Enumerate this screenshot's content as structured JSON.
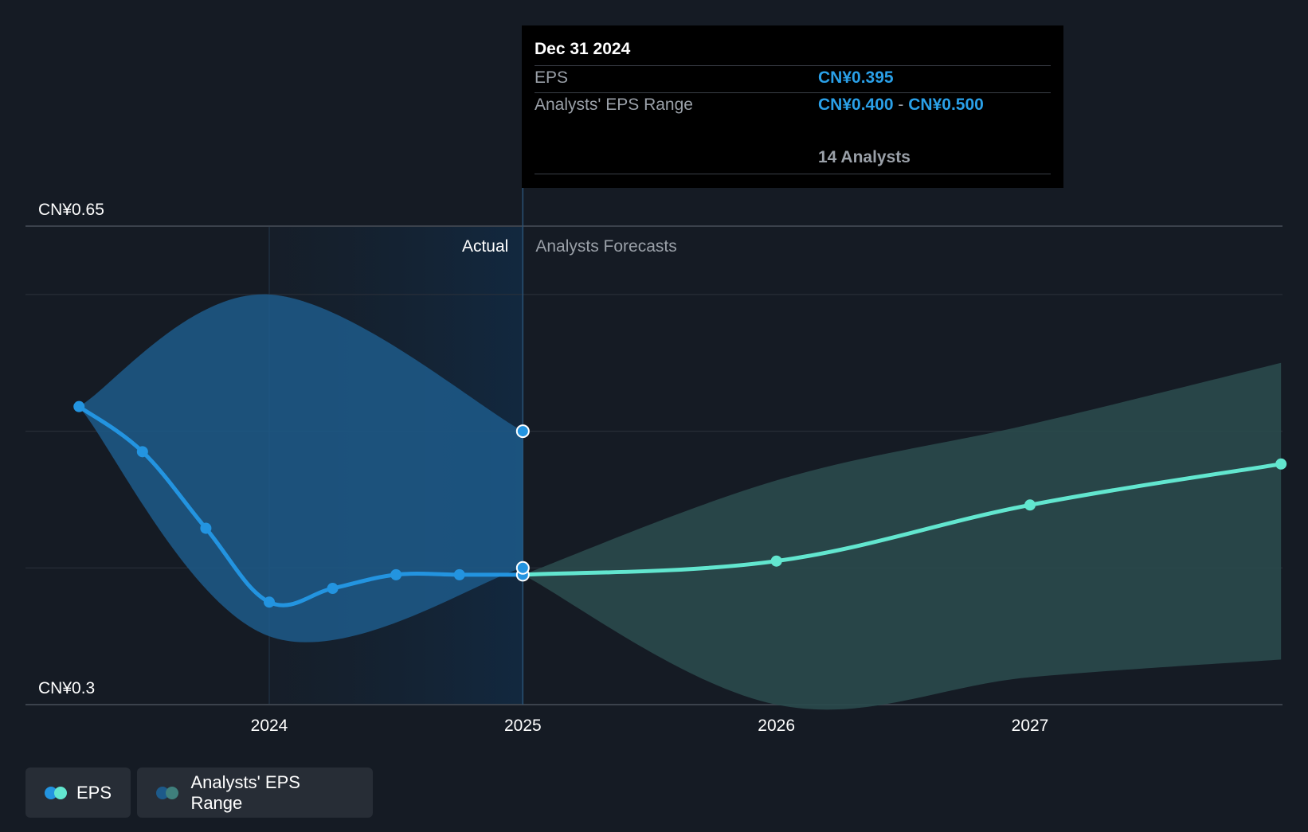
{
  "tooltip": {
    "date": "Dec 31 2024",
    "eps_label": "EPS",
    "eps_value": "CN¥0.395",
    "range_label": "Analysts' EPS Range",
    "range_low": "CN¥0.400",
    "range_sep": "-",
    "range_high": "CN¥0.500",
    "analysts": "14 Analysts"
  },
  "legend": {
    "eps_label": "EPS",
    "range_label": "Analysts' EPS Range"
  },
  "colors": {
    "background": "#151b24",
    "actual_line": "#2394e0",
    "forecast_line": "#62e6cf",
    "actual_band": "#1d5a8a",
    "forecast_band": "#2a4a4d",
    "grid": "#2c323b"
  },
  "chart_data": {
    "type": "line",
    "y_axis": {
      "min": 0.3,
      "max": 0.65,
      "labels": [
        {
          "value": 0.65,
          "text": "CN¥0.65"
        },
        {
          "value": 0.3,
          "text": "CN¥0.3"
        }
      ],
      "gridlines": [
        0.65,
        0.6,
        0.5,
        0.4,
        0.3
      ]
    },
    "x_axis": {
      "min": 2023.05,
      "max": 2027.99,
      "ticks": [
        {
          "value": 2024,
          "text": "2024"
        },
        {
          "value": 2025,
          "text": "2025"
        },
        {
          "value": 2026,
          "text": "2026"
        },
        {
          "value": 2027,
          "text": "2027"
        }
      ]
    },
    "section_labels": {
      "actual": "Actual",
      "forecast": "Analysts Forecasts"
    },
    "actual_start": 2024.0,
    "divider": 2025.0,
    "series": [
      {
        "name": "EPS",
        "kind": "actual",
        "points": [
          {
            "x": 2023.25,
            "y": 0.518
          },
          {
            "x": 2023.5,
            "y": 0.485
          },
          {
            "x": 2023.75,
            "y": 0.429
          },
          {
            "x": 2024.0,
            "y": 0.375
          },
          {
            "x": 2024.25,
            "y": 0.385
          },
          {
            "x": 2024.5,
            "y": 0.395
          },
          {
            "x": 2024.75,
            "y": 0.395
          },
          {
            "x": 2025.0,
            "y": 0.395
          }
        ]
      },
      {
        "name": "EPS",
        "kind": "forecast",
        "points": [
          {
            "x": 2025.0,
            "y": 0.395
          },
          {
            "x": 2026.0,
            "y": 0.405
          },
          {
            "x": 2027.0,
            "y": 0.446
          },
          {
            "x": 2027.99,
            "y": 0.476
          }
        ]
      }
    ],
    "range": [
      {
        "name": "Analysts' EPS Range",
        "kind": "actual",
        "points": [
          {
            "x": 2023.25,
            "low": 0.518,
            "high": 0.518
          },
          {
            "x": 2024.0,
            "low": 0.35,
            "high": 0.6
          },
          {
            "x": 2025.0,
            "low": 0.4,
            "high": 0.5
          }
        ]
      },
      {
        "name": "Analysts' EPS Range",
        "kind": "forecast",
        "points": [
          {
            "x": 2025.0,
            "low": 0.395,
            "high": 0.395
          },
          {
            "x": 2026.0,
            "low": 0.3,
            "high": 0.464
          },
          {
            "x": 2027.0,
            "low": 0.32,
            "high": 0.505
          },
          {
            "x": 2027.99,
            "low": 0.333,
            "high": 0.55
          }
        ]
      }
    ],
    "highlight": {
      "x": 2025.0,
      "eps": 0.395,
      "low": 0.4,
      "high": 0.5
    }
  }
}
